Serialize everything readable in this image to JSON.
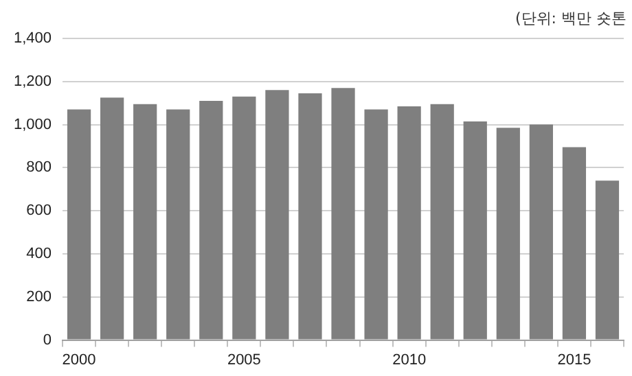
{
  "chart_data": {
    "type": "bar",
    "annotations": [
      "(단위: 백만 숏톤"
    ],
    "categories": [
      "2000",
      null,
      null,
      null,
      null,
      "2005",
      null,
      null,
      null,
      null,
      "2010",
      null,
      null,
      null,
      null,
      "2015",
      null
    ],
    "series": [
      {
        "color": "#7f7f7f",
        "values": [
          1070,
          1125,
          1095,
          1070,
          1110,
          1130,
          1160,
          1145,
          1170,
          1070,
          1085,
          1095,
          1015,
          985,
          1000,
          895,
          740
        ]
      }
    ],
    "ylim": [
      0,
      1400
    ],
    "yticks": [
      0,
      200,
      400,
      600,
      800,
      {
        "value": 1000,
        "label": "1,000"
      },
      {
        "value": 1200,
        "label": "1,200"
      },
      {
        "value": 1400,
        "label": "1,400"
      }
    ],
    "grid": "y",
    "legend": false
  }
}
